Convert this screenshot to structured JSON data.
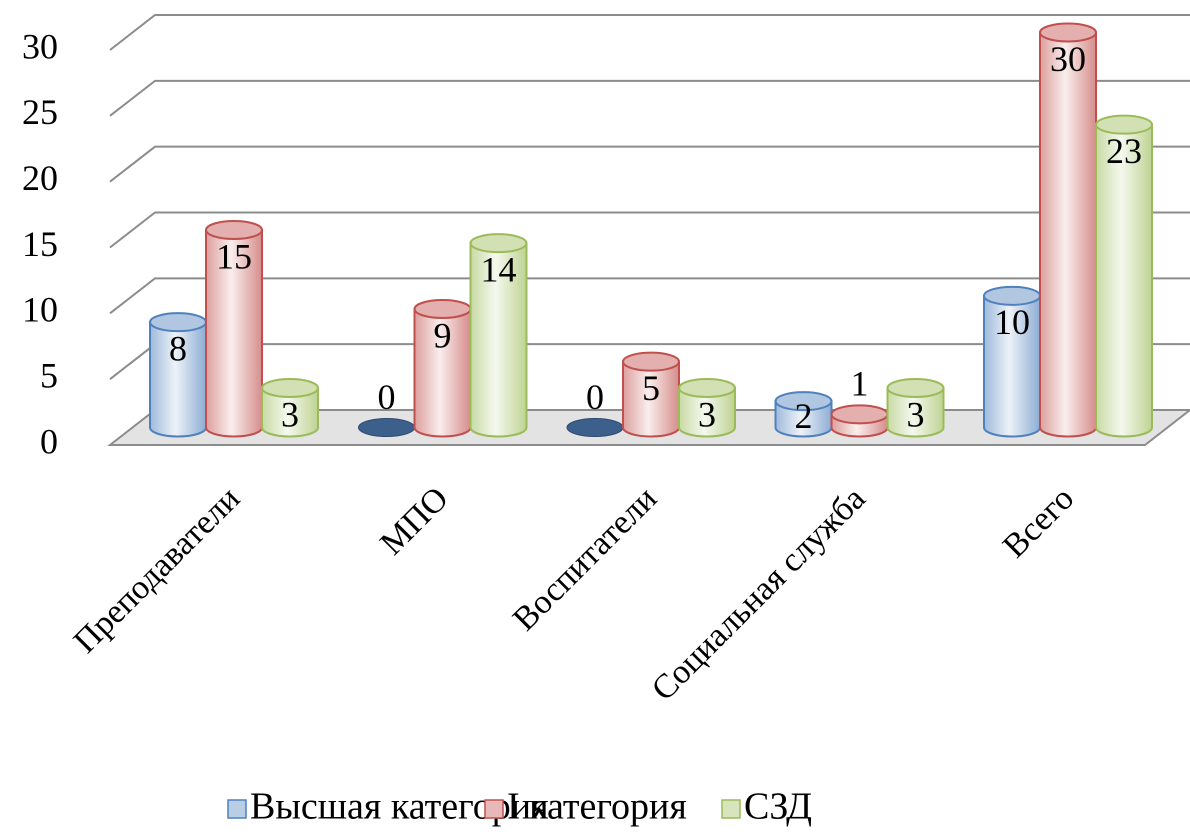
{
  "chart_data": {
    "type": "bar3d",
    "categories": [
      "Преподаватели",
      "МПО",
      "Воспитатели",
      "Социальная служба",
      "Всего"
    ],
    "series": [
      {
        "name": "Высшая категория",
        "color": "#4f81bd",
        "values": [
          8,
          0,
          0,
          2,
          10
        ]
      },
      {
        "name": "I категория",
        "color": "#c0504d",
        "values": [
          15,
          9,
          5,
          1,
          30
        ]
      },
      {
        "name": "СЗД",
        "color": "#9bbb59",
        "values": [
          3,
          14,
          3,
          3,
          23
        ]
      }
    ],
    "ylim": [
      0,
      30
    ],
    "yticks": [
      0,
      5,
      10,
      15,
      20,
      25,
      30
    ],
    "grid": true,
    "legend": "bottom"
  }
}
